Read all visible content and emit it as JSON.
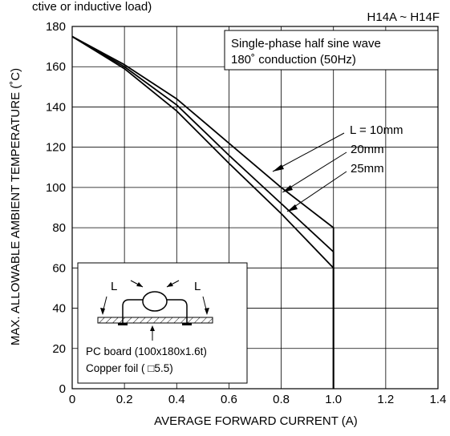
{
  "header": {
    "top_text": "ctive or inductive load)",
    "part_range": "H14A ~ H14F"
  },
  "chart_data": {
    "type": "line",
    "xlabel": "AVERAGE FORWARD CURRENT (A)",
    "ylabel": "MAX. ALLOWABLE AMBIENT TEMPERATURE (˚C)",
    "xlim": [
      0,
      1.4
    ],
    "ylim": [
      0,
      180
    ],
    "xticks": [
      "0",
      "0.2",
      "0.4",
      "0.6",
      "0.8",
      "1.0",
      "1.2",
      "1.4"
    ],
    "yticks": [
      "0",
      "20",
      "40",
      "60",
      "80",
      "100",
      "120",
      "140",
      "160",
      "180"
    ],
    "grid": true,
    "series": [
      {
        "name": "L = 10mm",
        "x": [
          0,
          0.2,
          0.4,
          0.6,
          0.8,
          1.0,
          1.0
        ],
        "y": [
          175,
          161,
          144,
          122,
          100,
          80,
          0
        ]
      },
      {
        "name": "20mm",
        "x": [
          0,
          0.2,
          0.4,
          0.6,
          0.8,
          1.0,
          1.0
        ],
        "y": [
          175,
          160,
          141,
          116,
          92,
          68,
          0
        ]
      },
      {
        "name": "25mm",
        "x": [
          0,
          0.2,
          0.4,
          0.6,
          0.8,
          1.0,
          1.0
        ],
        "y": [
          175,
          159,
          138,
          112,
          87,
          60,
          0
        ]
      }
    ],
    "annotations": {
      "condition_line1": "Single-phase half sine wave",
      "condition_line2": "180˚ conduction (50Hz)",
      "inset_dim_label_left": "L",
      "inset_dim_label_right": "L",
      "inset_line1": "PC board (100x180x1.6t)",
      "inset_line2": "Copper foil ( □5.5)"
    }
  }
}
